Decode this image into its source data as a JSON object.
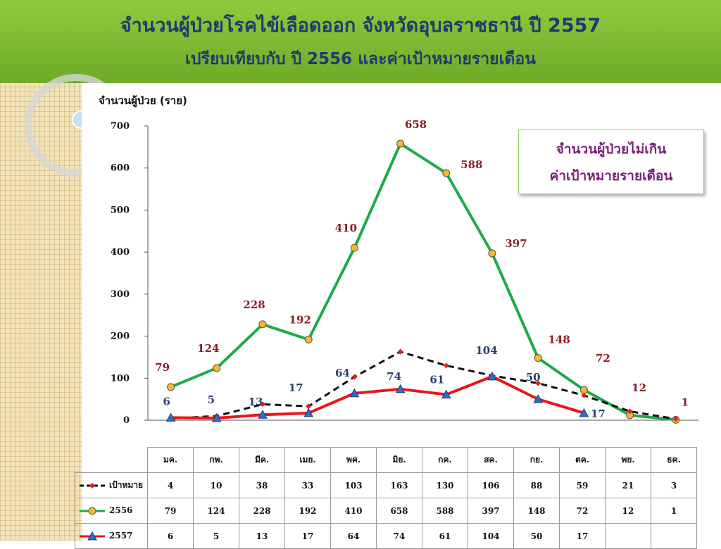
{
  "title": {
    "line1": "จำนวนผู้ป่วยโรคไข้เลือดออก  จังหวัดอุบลราชธานี ปี 2557",
    "line2": "เปรียบเทียบกับ ปี 2556  และค่าเป้าหมายรายเดือน"
  },
  "note": {
    "line1": "จำนวนผู้ป่วยไม่เกิน",
    "line2": "ค่าเป้าหมายรายเดือน"
  },
  "chart_data": {
    "type": "line",
    "ylabel": "จำนวนผู้ป่วย (ราย)",
    "ylim": [
      0,
      700
    ],
    "yticks": [
      0,
      100,
      200,
      300,
      400,
      500,
      600,
      700
    ],
    "categories": [
      "มค.",
      "กพ.",
      "มีค.",
      "เมย.",
      "พค.",
      "มิย.",
      "กค.",
      "สค.",
      "กย.",
      "ตค.",
      "พย.",
      "ธค."
    ],
    "series": [
      {
        "name": "เป้าหมาย",
        "color": "#111111",
        "marker": "diamond",
        "marker_color": "#e02020",
        "dashed": true,
        "values": [
          4,
          10,
          38,
          33,
          103,
          163,
          130,
          106,
          88,
          59,
          21,
          3
        ]
      },
      {
        "name": "2556",
        "color": "#1faa4a",
        "marker": "circle",
        "marker_color": "#f5b82e",
        "dashed": false,
        "values": [
          79,
          124,
          228,
          192,
          410,
          658,
          588,
          397,
          148,
          72,
          12,
          1
        ]
      },
      {
        "name": "2557",
        "color": "#e8161b",
        "marker": "triangle",
        "marker_color": "#2e6fc4",
        "dashed": false,
        "values": [
          6,
          5,
          13,
          17,
          64,
          74,
          61,
          104,
          50,
          17,
          null,
          null
        ]
      }
    ]
  }
}
